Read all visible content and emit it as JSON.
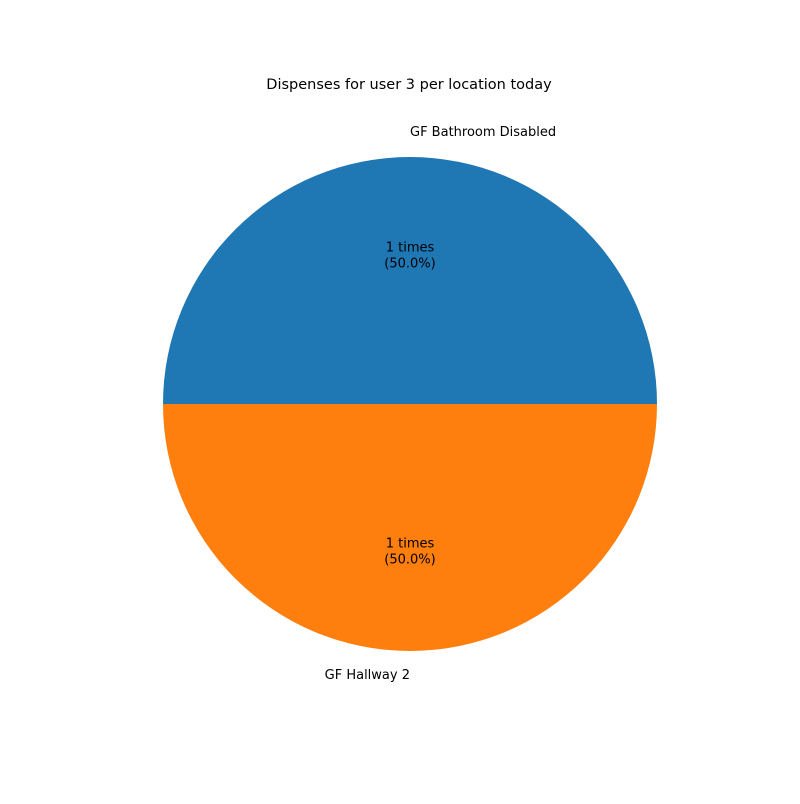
{
  "chart_data": {
    "type": "pie",
    "title": "Dispenses for user 3 per location today",
    "slices": [
      {
        "label": "GF Bathroom Disabled",
        "value": 1,
        "value_label": "1 times",
        "percent_label": "(50.0%)",
        "color": "#1f77b4"
      },
      {
        "label": "GF Hallway 2",
        "value": 1,
        "value_label": "1 times",
        "percent_label": "(50.0%)",
        "color": "#ff7f0e"
      }
    ],
    "start_angle_deg": 0,
    "direction": "counterclockwise"
  }
}
